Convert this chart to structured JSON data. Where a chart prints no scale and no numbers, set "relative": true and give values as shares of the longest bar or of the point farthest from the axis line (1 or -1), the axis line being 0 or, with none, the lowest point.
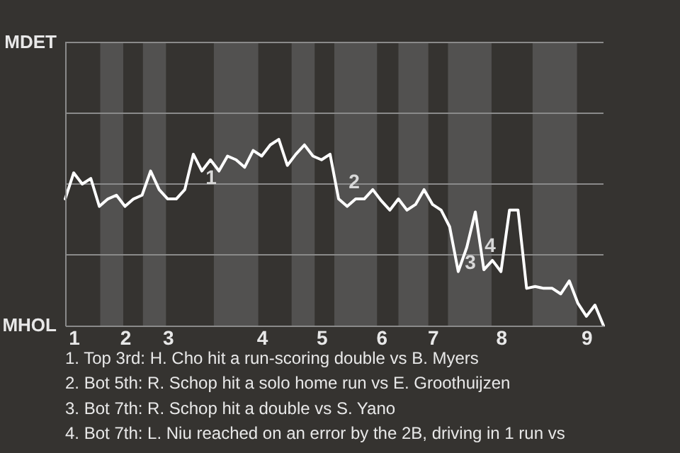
{
  "chart_data": {
    "type": "line",
    "relative": true,
    "categories": [
      null,
      "1",
      null,
      null,
      null,
      null,
      null,
      "2",
      null,
      null,
      null,
      null,
      "3",
      null,
      null,
      null,
      null,
      null,
      null,
      null,
      null,
      null,
      null,
      "4",
      null,
      null,
      null,
      null,
      null,
      null,
      "5",
      null,
      null,
      null,
      null,
      null,
      null,
      "6",
      null,
      null,
      null,
      null,
      null,
      "7",
      null,
      null,
      null,
      null,
      null,
      null,
      null,
      "8",
      null,
      null,
      null,
      null,
      null,
      null,
      null,
      null,
      null,
      "9",
      null,
      null
    ],
    "ref_lines": [
      {
        "axis": "y",
        "value": 0.38,
        "color": "#8a8a8a"
      },
      {
        "axis": "y",
        "value": 0.76,
        "color": "#8a8a8a"
      },
      {
        "axis": "y",
        "value": 1.14,
        "color": "#8a8a8a"
      },
      {
        "axis": "y",
        "value": 1.52,
        "color": "#8a8a8a"
      }
    ],
    "series": [
      {
        "color": "#ffffff",
        "values": [
          0.68,
          0.82,
          0.76,
          0.79,
          0.64,
          0.68,
          0.7,
          0.64,
          0.68,
          0.7,
          0.83,
          0.73,
          0.68,
          0.68,
          0.73,
          0.92,
          0.83,
          0.89,
          0.83,
          0.91,
          0.89,
          0.85,
          0.94,
          0.91,
          0.97,
          1.0,
          0.86,
          0.92,
          0.97,
          0.91,
          0.89,
          0.92,
          0.68,
          0.64,
          0.68,
          0.68,
          0.73,
          0.67,
          0.62,
          0.68,
          0.62,
          0.65,
          0.73,
          0.65,
          0.62,
          0.53,
          0.29,
          0.42,
          0.61,
          0.3,
          0.35,
          0.29,
          0.62,
          0.62,
          0.2,
          0.21,
          0.2,
          0.2,
          0.17,
          0.24,
          0.12,
          0.05,
          0.11,
          0.0
        ]
      }
    ],
    "annotations": [
      "MDET",
      "MHOL",
      "1",
      "2",
      "3",
      "4",
      "1. Top 3rd: H. Cho hit a run-scoring double vs B. Myers",
      "2. Bot 5th: R. Schop hit a solo home run vs E. Groothuijzen",
      "3. Bot 7th: R. Schop hit a double vs S. Yano",
      "4. Bot 7th: L. Niu reached on an error by the 2B, driving in 1 run vs"
    ]
  }
}
